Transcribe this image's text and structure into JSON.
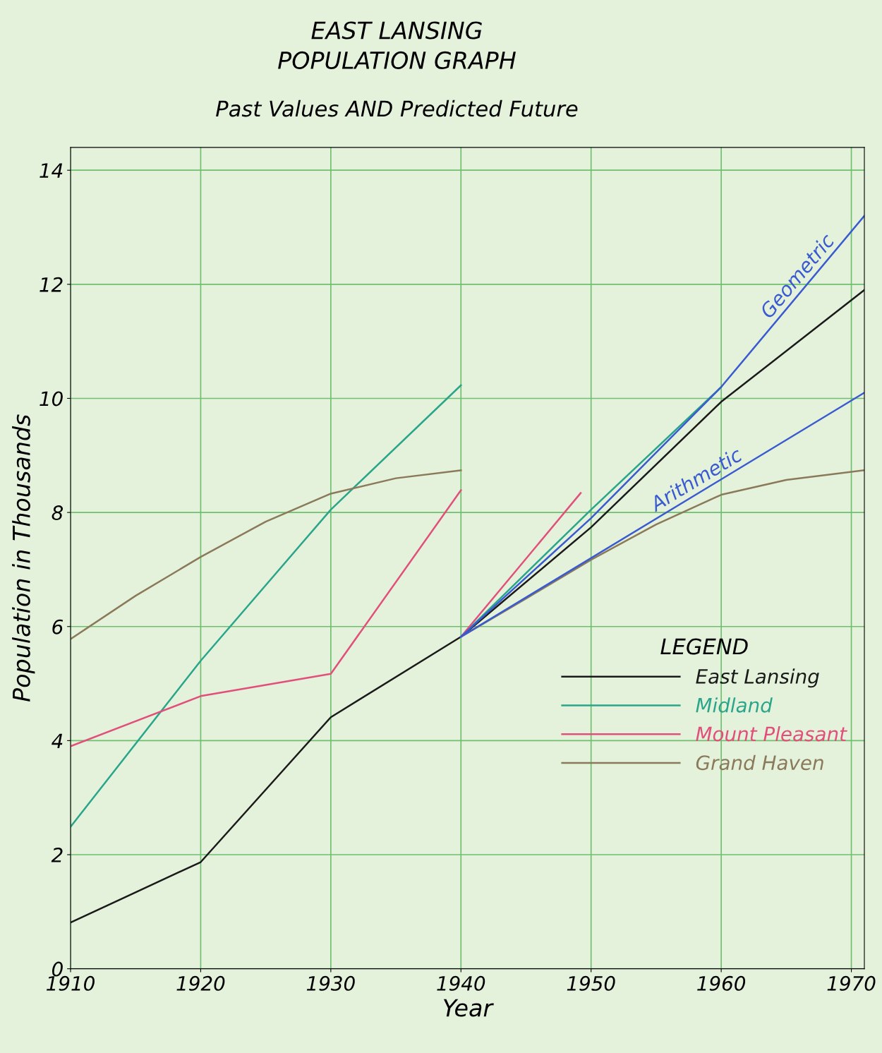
{
  "chart_data": {
    "type": "line",
    "title": "EAST LANSING\nPOPULATION GRAPH",
    "subtitle": "Past Values AND Predicted Future",
    "xlabel": "Year",
    "ylabel": "Population in Thousands",
    "xlim": [
      1910,
      1971
    ],
    "ylim": [
      0,
      14.4
    ],
    "xticks": [
      1910,
      1920,
      1930,
      1940,
      1950,
      1960,
      1970
    ],
    "yticks": [
      0,
      2,
      4,
      6,
      8,
      10,
      12,
      14
    ],
    "grid": true,
    "legend": "center right",
    "legend_title": "LEGEND",
    "marker": "none",
    "line_style": "solid",
    "series": [
      {
        "name": "East Lansing",
        "color": "#1a1a1a",
        "x": [
          1910,
          1920,
          1930,
          1940,
          1950,
          1960,
          1971
        ],
        "values": [
          0.81,
          1.87,
          4.41,
          5.82,
          7.74,
          9.94,
          11.9
        ]
      },
      {
        "name": "Midland",
        "color": "#2aa58a",
        "x": [
          1910,
          1920,
          1930,
          1940
        ],
        "values": [
          2.49,
          5.4,
          8.05,
          10.23
        ]
      },
      {
        "name": "Mount Pleasant",
        "color": "#e0507a",
        "x": [
          1910,
          1920,
          1930,
          1940
        ],
        "values": [
          3.9,
          4.78,
          5.17,
          8.39
        ]
      },
      {
        "name": "Grand Haven",
        "color": "#8a7a5a",
        "x": [
          1910,
          1915,
          1920,
          1925,
          1930,
          1935,
          1940
        ],
        "values": [
          5.78,
          6.54,
          7.22,
          7.84,
          8.33,
          8.6,
          8.74
        ]
      },
      {
        "color": "#2aa58a",
        "x": [
          1940,
          1950,
          1960
        ],
        "values": [
          5.82,
          8.05,
          10.2
        ]
      },
      {
        "color": "#e0507a",
        "x": [
          1940,
          1949.2
        ],
        "values": [
          5.82,
          8.34
        ]
      },
      {
        "color": "#8a7a5a",
        "x": [
          1940,
          1945,
          1950,
          1955,
          1960,
          1965,
          1971
        ],
        "values": [
          5.82,
          6.49,
          7.17,
          7.79,
          8.31,
          8.57,
          8.74
        ]
      },
      {
        "name": "Geometric",
        "color": "#3a5ad0",
        "x": [
          1940,
          1950,
          1960,
          1971
        ],
        "values": [
          5.82,
          7.9,
          10.2,
          13.2
        ]
      },
      {
        "name": "Arithmetic",
        "color": "#3a5ad0",
        "x": [
          1940,
          1971
        ],
        "values": [
          5.82,
          10.1
        ]
      }
    ]
  }
}
